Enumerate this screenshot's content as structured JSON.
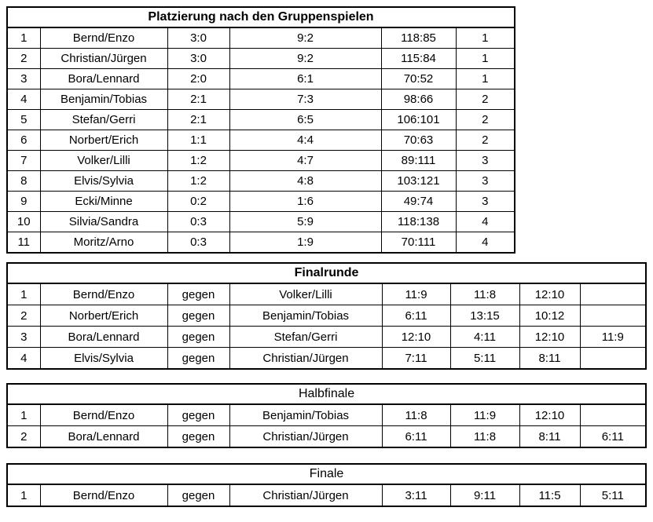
{
  "document": {
    "background_color": "#ffffff",
    "text_color": "#000000",
    "border_color": "#000000"
  },
  "tables": [
    {
      "name": "gruppenspiele",
      "title": "Platzierung nach den Gruppenspielen",
      "title_bold": true,
      "col_names": [
        "rank",
        "team",
        "match-record",
        "set-record",
        "points",
        "group"
      ],
      "rows": [
        [
          "1",
          "Bernd/Enzo",
          "3:0",
          "9:2",
          "118:85",
          "1"
        ],
        [
          "2",
          "Christian/Jürgen",
          "3:0",
          "9:2",
          "115:84",
          "1"
        ],
        [
          "3",
          "Bora/Lennard",
          "2:0",
          "6:1",
          "70:52",
          "1"
        ],
        [
          "4",
          "Benjamin/Tobias",
          "2:1",
          "7:3",
          "98:66",
          "2"
        ],
        [
          "5",
          "Stefan/Gerri",
          "2:1",
          "6:5",
          "106:101",
          "2"
        ],
        [
          "6",
          "Norbert/Erich",
          "1:1",
          "4:4",
          "70:63",
          "2"
        ],
        [
          "7",
          "Volker/Lilli",
          "1:2",
          "4:7",
          "89:111",
          "3"
        ],
        [
          "8",
          "Elvis/Sylvia",
          "1:2",
          "4:8",
          "103:121",
          "3"
        ],
        [
          "9",
          "Ecki/Minne",
          "0:2",
          "1:6",
          "49:74",
          "3"
        ],
        [
          "10",
          "Silvia/Sandra",
          "0:3",
          "5:9",
          "118:138",
          "4"
        ],
        [
          "11",
          "Moritz/Arno",
          "0:3",
          "1:9",
          "70:111",
          "4"
        ]
      ]
    },
    {
      "name": "finalrunde",
      "title": "Finalrunde",
      "title_bold": true,
      "col_names": [
        "rank",
        "team1",
        "versus",
        "team2",
        "set1",
        "set2",
        "set3",
        "set4"
      ],
      "rows": [
        [
          "1",
          "Bernd/Enzo",
          "gegen",
          "Volker/Lilli",
          "11:9",
          "11:8",
          "12:10",
          ""
        ],
        [
          "2",
          "Norbert/Erich",
          "gegen",
          "Benjamin/Tobias",
          "6:11",
          "13:15",
          "10:12",
          ""
        ],
        [
          "3",
          "Bora/Lennard",
          "gegen",
          "Stefan/Gerri",
          "12:10",
          "4:11",
          "12:10",
          "11:9"
        ],
        [
          "4",
          "Elvis/Sylvia",
          "gegen",
          "Christian/Jürgen",
          "7:11",
          "5:11",
          "8:11",
          ""
        ]
      ]
    },
    {
      "name": "halbfinale",
      "title": "Halbfinale",
      "title_bold": false,
      "col_names": [
        "rank",
        "team1",
        "versus",
        "team2",
        "set1",
        "set2",
        "set3",
        "set4"
      ],
      "rows": [
        [
          "1",
          "Bernd/Enzo",
          "gegen",
          "Benjamin/Tobias",
          "11:8",
          "11:9",
          "12:10",
          ""
        ],
        [
          "2",
          "Bora/Lennard",
          "gegen",
          "Christian/Jürgen",
          "6:11",
          "11:8",
          "8:11",
          "6:11"
        ]
      ]
    },
    {
      "name": "finale",
      "title": "Finale",
      "title_bold": false,
      "col_names": [
        "rank",
        "team1",
        "versus",
        "team2",
        "set1",
        "set2",
        "set3",
        "set4"
      ],
      "rows": [
        [
          "1",
          "Bernd/Enzo",
          "gegen",
          "Christian/Jürgen",
          "3:11",
          "9:11",
          "11:5",
          "5:11"
        ]
      ]
    }
  ]
}
